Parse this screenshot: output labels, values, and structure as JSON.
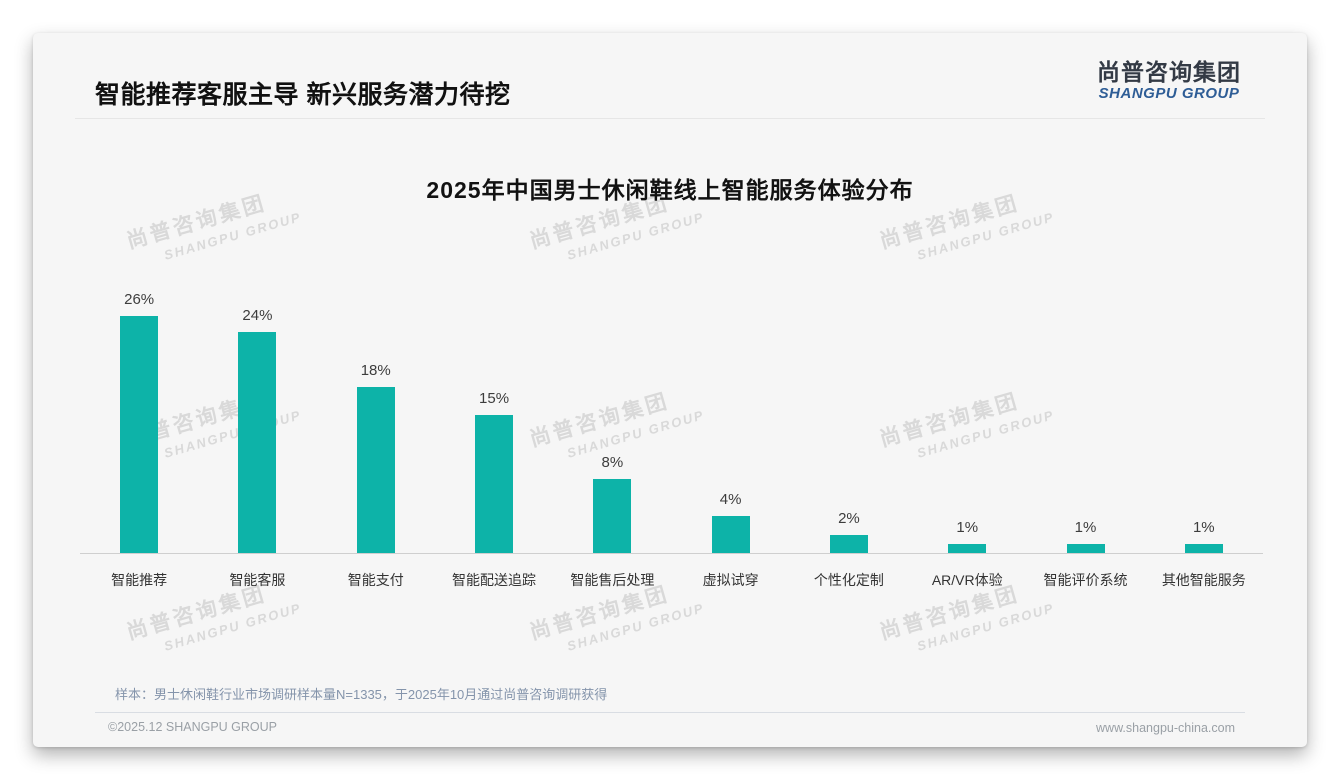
{
  "header": {
    "title": "智能推荐客服主导 新兴服务潜力待挖"
  },
  "logo": {
    "cn": "尚普咨询集团",
    "en": "SHANGPU GROUP"
  },
  "watermark": {
    "cn": "尚普咨询集团",
    "en": "SHANGPU GROUP"
  },
  "note": "样本：男士休闲鞋行业市场调研样本量N=1335，于2025年10月通过尚普咨询调研获得",
  "footer": {
    "left": "©2025.12 SHANGPU GROUP",
    "right": "www.shangpu-china.com"
  },
  "colors": {
    "bar": "#0db3a8",
    "logo_blue": "#2e5d96",
    "slide_bg": "#f6f6f6"
  },
  "chart_data": {
    "type": "bar",
    "title": "2025年中国男士休闲鞋线上智能服务体验分布",
    "categories": [
      "智能推荐",
      "智能客服",
      "智能支付",
      "智能配送追踪",
      "智能售后处理",
      "虚拟试穿",
      "个性化定制",
      "AR/VR体验",
      "智能评价系统",
      "其他智能服务"
    ],
    "values": [
      26,
      24,
      18,
      15,
      8,
      4,
      2,
      1,
      1,
      1
    ],
    "unit": "%",
    "value_labels": true,
    "xlabel": "",
    "ylabel": "",
    "ylim": [
      0,
      28
    ],
    "grid": false,
    "legend": false,
    "bar_color": "#0db3a8"
  }
}
